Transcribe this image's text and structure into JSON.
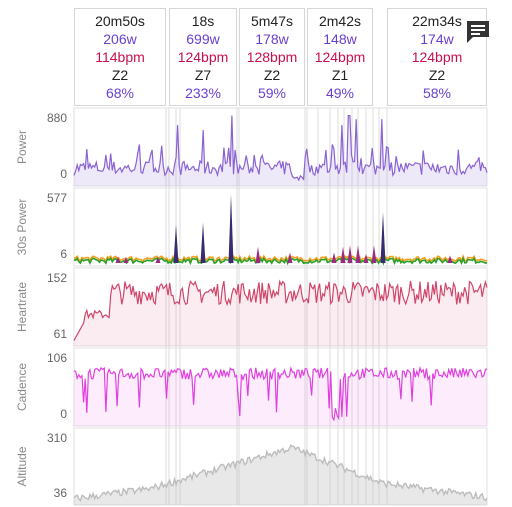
{
  "intervals": [
    {
      "duration": "20m50s",
      "power": "206w",
      "heartrate": "114bpm",
      "zone": "Z2",
      "percent": "68%"
    },
    {
      "duration": "18s",
      "power": "699w",
      "heartrate": "124bpm",
      "zone": "Z7",
      "percent": "233%"
    },
    {
      "duration": "5m47s",
      "power": "178w",
      "heartrate": "128bpm",
      "zone": "Z2",
      "percent": "59%"
    },
    {
      "duration": "2m42s",
      "power": "148w",
      "heartrate": "124bpm",
      "zone": "Z1",
      "percent": "49%"
    },
    {
      "duration": "22m34s",
      "power": "174w",
      "heartrate": "124bpm",
      "zone": "Z2",
      "percent": "58%"
    }
  ],
  "icons": {
    "chat": "chat-bubble-icon"
  },
  "colors": {
    "power": "#8a63d2",
    "heartrate": "#d0466a",
    "cadence": "#e040e0",
    "altitude": "#bdbdbd"
  },
  "chart_data": [
    {
      "type": "line",
      "ylabel": "Power",
      "yticks": [
        "880",
        "0"
      ],
      "ylim": [
        0,
        880
      ]
    },
    {
      "type": "line",
      "ylabel": "30s Power",
      "yticks": [
        "577",
        "6"
      ],
      "ylim": [
        6,
        577
      ]
    },
    {
      "type": "area",
      "ylabel": "Heartrate",
      "yticks": [
        "152",
        "61"
      ],
      "ylim": [
        61,
        152
      ]
    },
    {
      "type": "area",
      "ylabel": "Cadence",
      "yticks": [
        "106",
        "0"
      ],
      "ylim": [
        0,
        106
      ]
    },
    {
      "type": "area",
      "ylabel": "Altitude",
      "yticks": [
        "310",
        "36"
      ],
      "ylim": [
        36,
        310
      ]
    }
  ]
}
